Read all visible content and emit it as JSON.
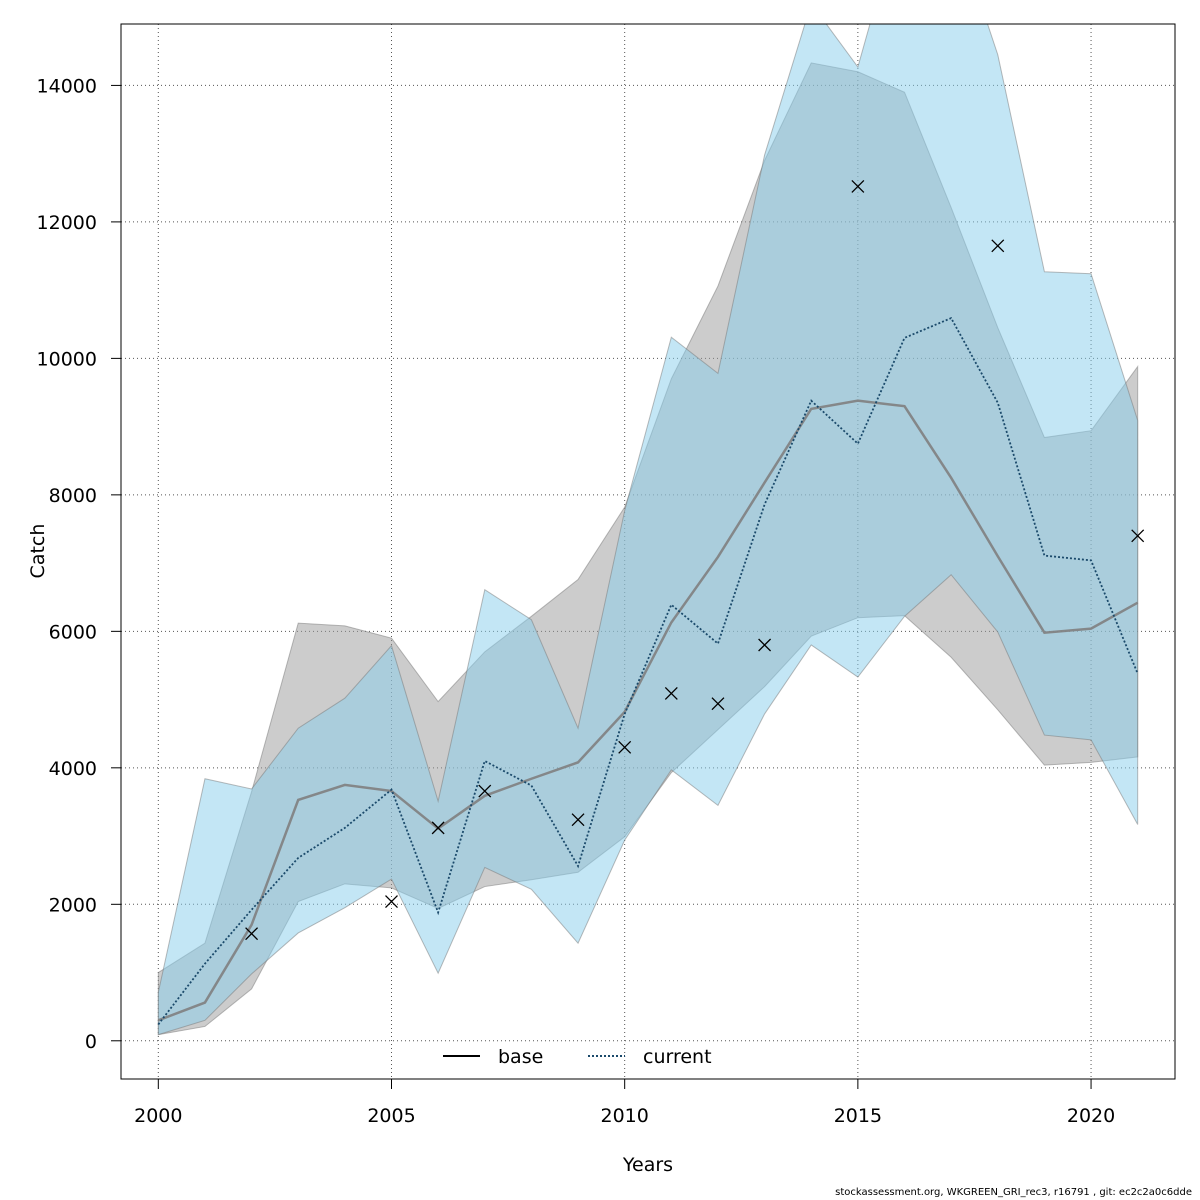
{
  "chart_data": {
    "type": "line",
    "xlabel": "Years",
    "ylabel": "Catch",
    "xlim": [
      1999.2,
      2021.8
    ],
    "ylim": [
      -560,
      14900
    ],
    "x_ticks": [
      2000,
      2005,
      2010,
      2015,
      2020
    ],
    "y_ticks": [
      0,
      2000,
      4000,
      6000,
      8000,
      10000,
      12000,
      14000
    ],
    "grid": true,
    "legend_position": "bottom-center",
    "years": [
      2000,
      2001,
      2002,
      2003,
      2004,
      2005,
      2006,
      2007,
      2008,
      2009,
      2010,
      2011,
      2012,
      2013,
      2014,
      2015,
      2016,
      2017,
      2018,
      2019,
      2020,
      2021
    ],
    "series": [
      {
        "name": "base",
        "color": "#808080",
        "line_style": "solid",
        "band_color": "#9a9a9a",
        "values": [
          300,
          560,
          1700,
          3530,
          3750,
          3660,
          3110,
          3590,
          3840,
          4080,
          4820,
          6130,
          7090,
          8180,
          9260,
          9380,
          9300,
          8250,
          7100,
          5980,
          6040,
          6420
        ],
        "lower": [
          90,
          210,
          760,
          2040,
          2300,
          2240,
          1940,
          2260,
          2360,
          2470,
          2990,
          3930,
          4560,
          5190,
          5930,
          6200,
          6230,
          5620,
          4850,
          4040,
          4080,
          4160
        ],
        "upper": [
          1000,
          1430,
          3650,
          6120,
          6080,
          5900,
          4970,
          5700,
          6220,
          6760,
          7820,
          9700,
          11060,
          12900,
          14330,
          14200,
          13900,
          12210,
          10450,
          8840,
          8940,
          9880
        ]
      },
      {
        "name": "current",
        "color": "#1b4a6b",
        "line_style": "dotted",
        "band_color": "#87ceeb",
        "values": [
          240,
          1130,
          1920,
          2680,
          3120,
          3680,
          1880,
          4100,
          3740,
          2560,
          4790,
          6390,
          5820,
          7860,
          9380,
          8750,
          10300,
          10590,
          9350,
          7110,
          7040,
          5380
        ],
        "lower": [
          90,
          300,
          980,
          1580,
          1950,
          2370,
          990,
          2540,
          2220,
          1430,
          2940,
          3970,
          3450,
          4790,
          5800,
          5330,
          6220,
          6830,
          5990,
          4480,
          4410,
          3170
        ],
        "upper": [
          710,
          3840,
          3690,
          4580,
          5020,
          5790,
          3510,
          6610,
          6170,
          4580,
          7770,
          10310,
          9780,
          12980,
          15200,
          14270,
          16700,
          16500,
          14450,
          11270,
          11240,
          9090
        ]
      }
    ],
    "observations": {
      "marker": "x",
      "points": [
        [
          2002,
          1570
        ],
        [
          2005,
          2040
        ],
        [
          2006,
          3120
        ],
        [
          2007,
          3660
        ],
        [
          2009,
          3240
        ],
        [
          2010,
          4300
        ],
        [
          2011,
          5090
        ],
        [
          2012,
          4940
        ],
        [
          2013,
          5800
        ],
        [
          2015,
          12520
        ],
        [
          2018,
          11650
        ],
        [
          2021,
          7400
        ]
      ]
    }
  },
  "footer": {
    "text": "stockassessment.org, WKGREEN_GRI_rec3, r16791 , git: ec2c2a0c6dde"
  }
}
